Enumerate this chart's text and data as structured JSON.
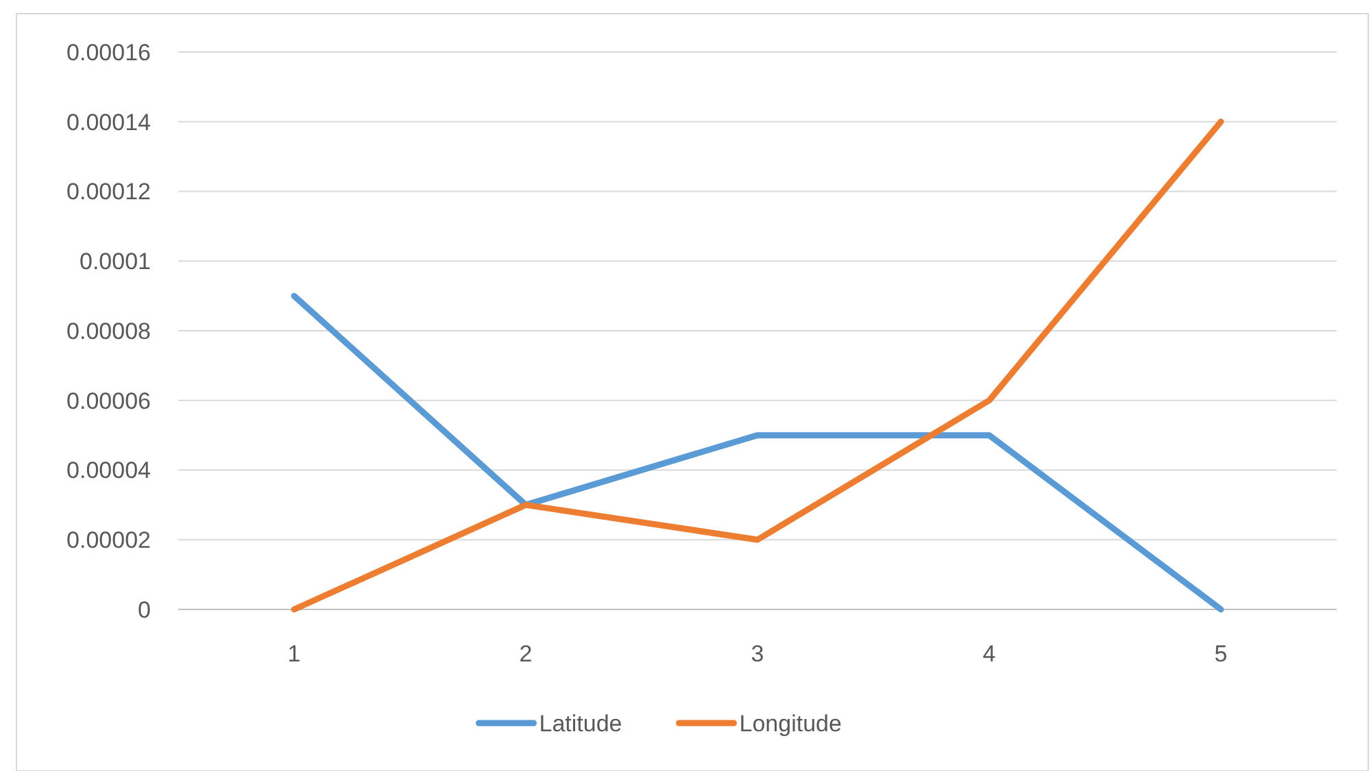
{
  "chart_data": {
    "type": "line",
    "categories": [
      "1",
      "2",
      "3",
      "4",
      "5"
    ],
    "series": [
      {
        "name": "Latitude",
        "color": "#5b9bd5",
        "values": [
          9e-05,
          3e-05,
          5e-05,
          5e-05,
          0
        ]
      },
      {
        "name": "Longitude",
        "color": "#ed7d31",
        "values": [
          0,
          3e-05,
          2e-05,
          6e-05,
          0.00014
        ]
      }
    ],
    "ylim": [
      0,
      0.00016
    ],
    "yticks": [
      0,
      {
        "value": 2e-05,
        "label": "0.00002"
      },
      {
        "value": 4e-05,
        "label": "0.00004"
      },
      {
        "value": 6e-05,
        "label": "0.00006"
      },
      {
        "value": 8e-05,
        "label": "0.00008"
      },
      0.0001,
      0.00012,
      0.00014,
      0.00016
    ],
    "grid": "y",
    "legend": "bottom",
    "marker": "none",
    "line_style": "solid"
  }
}
